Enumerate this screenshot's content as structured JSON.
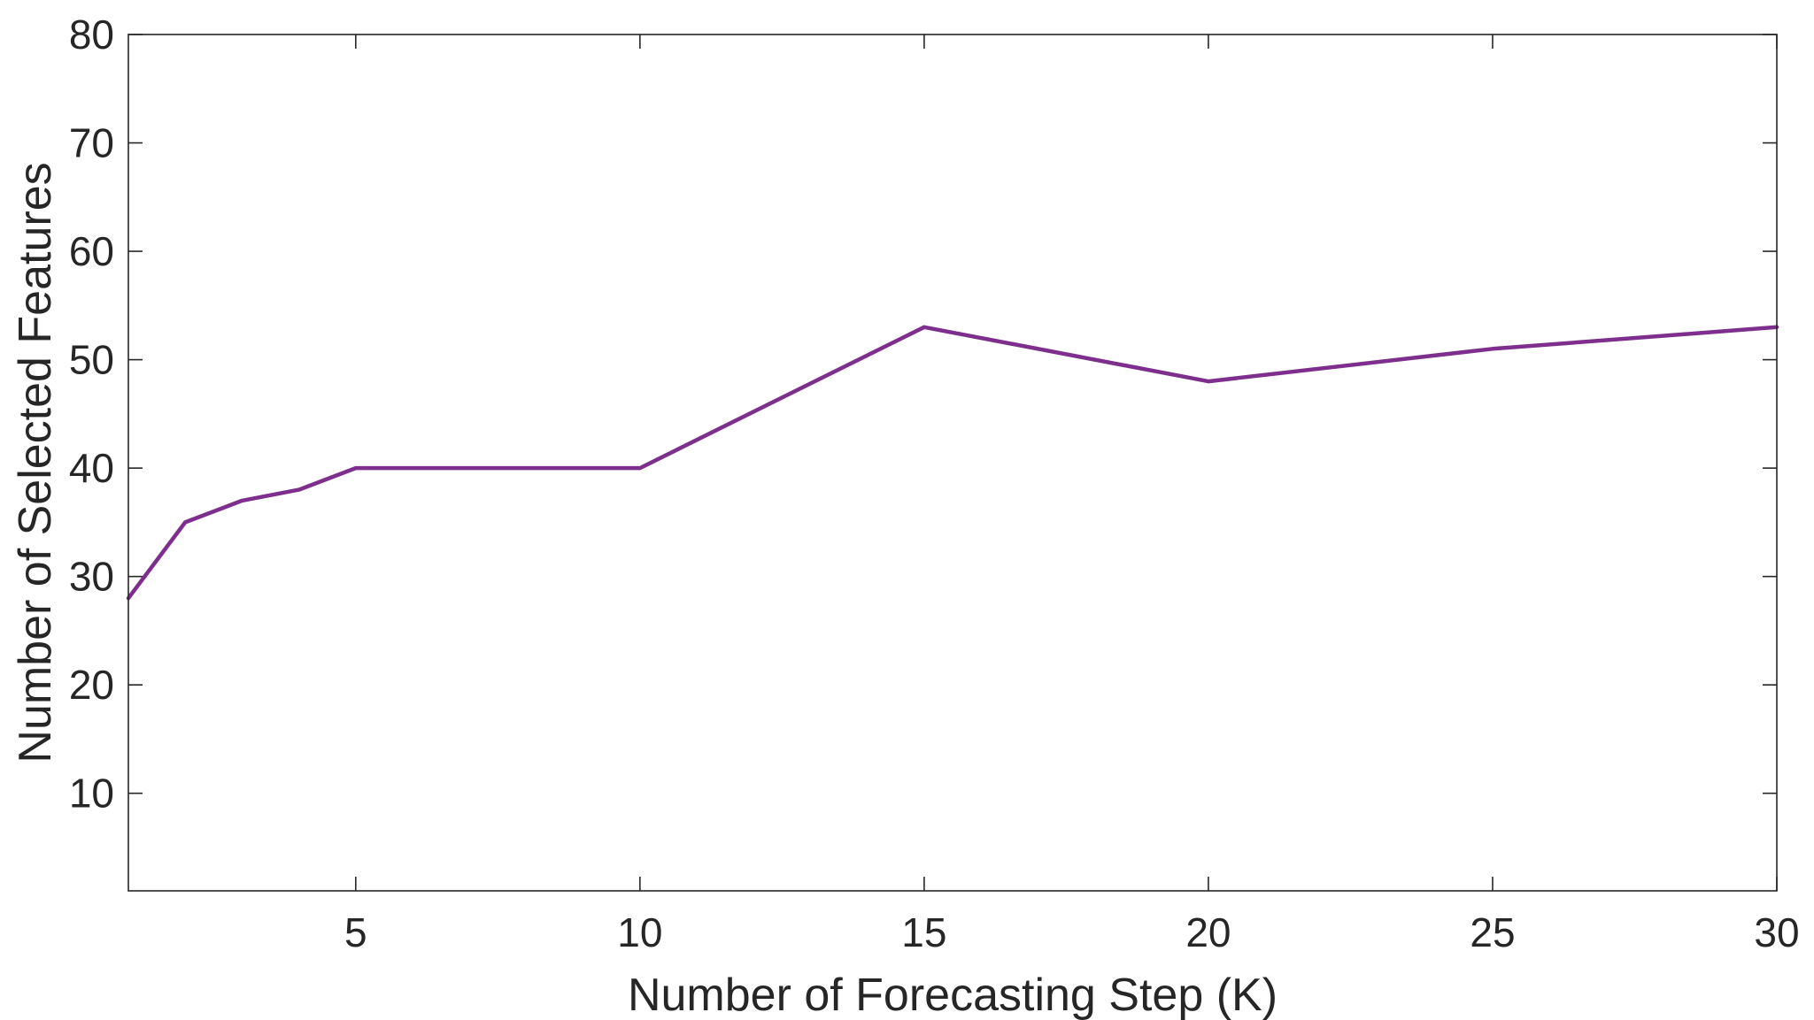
{
  "chart_data": {
    "type": "line",
    "title": "",
    "xlabel": "Number of Forecasting Step (K)",
    "ylabel": "Number of Selected Features",
    "xlim": [
      1,
      30
    ],
    "ylim": [
      1,
      80
    ],
    "x_ticks": [
      5,
      10,
      15,
      20,
      25,
      30
    ],
    "y_ticks": [
      10,
      20,
      30,
      40,
      50,
      60,
      70,
      80
    ],
    "grid": false,
    "box": true,
    "series": [
      {
        "color": "#7E2F8E",
        "x": [
          1,
          2,
          3,
          4,
          5,
          10,
          15,
          20,
          25,
          30
        ],
        "y": [
          28,
          35,
          37,
          38,
          40,
          40,
          53,
          48,
          51,
          53
        ]
      }
    ]
  }
}
